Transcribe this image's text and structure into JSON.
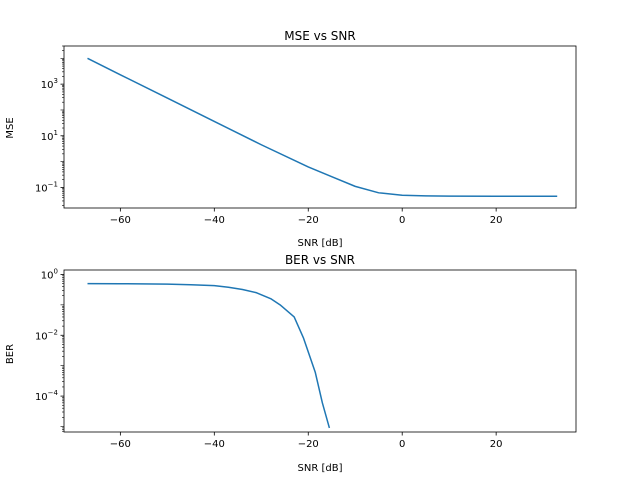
{
  "chart_data": [
    {
      "type": "line",
      "title": "MSE vs SNR",
      "xlabel": "SNR [dB]",
      "ylabel": "MSE",
      "yscale": "log",
      "xlim": [
        -72,
        37
      ],
      "ylim": [
        0.016,
        30000
      ],
      "grid": false,
      "x_ticks": [
        {
          "value": -60,
          "label": "−60"
        },
        {
          "value": -40,
          "label": "−40"
        },
        {
          "value": -20,
          "label": "−20"
        },
        {
          "value": 0,
          "label": "0"
        },
        {
          "value": 20,
          "label": "20"
        }
      ],
      "y_ticks": [
        {
          "value": 0.1,
          "base": "10",
          "exp": "−1"
        },
        {
          "value": 10,
          "base": "10",
          "exp": "1"
        },
        {
          "value": 1000,
          "base": "10",
          "exp": "3"
        }
      ],
      "color": "#1f77b4",
      "series": [
        {
          "x": [
            -67,
            -60,
            -50,
            -40,
            -30,
            -20,
            -15,
            -10,
            -5,
            0,
            5,
            10,
            20,
            33
          ],
          "y": [
            10000,
            2300,
            290,
            36,
            4.5,
            0.62,
            0.26,
            0.11,
            0.062,
            0.05,
            0.047,
            0.0462,
            0.0458,
            0.0455
          ]
        }
      ]
    },
    {
      "type": "line",
      "title": "BER vs SNR",
      "xlabel": "SNR [dB]",
      "ylabel": "BER",
      "yscale": "log",
      "xlim": [
        -72,
        37
      ],
      "ylim": [
        6.6e-06,
        1.4
      ],
      "grid": false,
      "x_ticks": [
        {
          "value": -60,
          "label": "−60"
        },
        {
          "value": -40,
          "label": "−40"
        },
        {
          "value": -20,
          "label": "−20"
        },
        {
          "value": 0,
          "label": "0"
        },
        {
          "value": 20,
          "label": "20"
        }
      ],
      "y_ticks": [
        {
          "value": 0.0001,
          "base": "10",
          "exp": "−4"
        },
        {
          "value": 0.01,
          "base": "10",
          "exp": "−2"
        },
        {
          "value": 1,
          "base": "10",
          "exp": "0"
        }
      ],
      "color": "#1f77b4",
      "series": [
        {
          "x": [
            -67,
            -60,
            -50,
            -45,
            -40,
            -37,
            -34,
            -31,
            -28,
            -26,
            -23,
            -21,
            -18.5,
            -17,
            -15.5
          ],
          "y": [
            0.5,
            0.495,
            0.48,
            0.46,
            0.43,
            0.38,
            0.32,
            0.25,
            0.16,
            0.1,
            0.04,
            0.008,
            0.0006,
            6e-05,
            9e-06
          ]
        }
      ]
    }
  ]
}
